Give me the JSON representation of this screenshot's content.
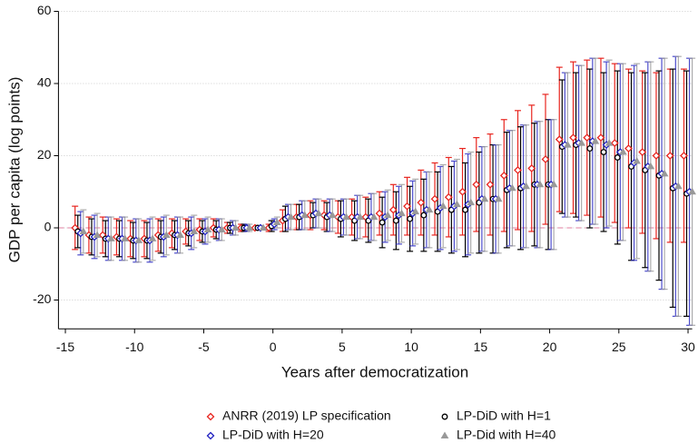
{
  "chart_data": {
    "type": "errorbar",
    "xlabel": "Years after democratization",
    "ylabel": "GDP per capita (log points)",
    "x": [
      -14,
      -13,
      -12,
      -11,
      -10,
      -9,
      -8,
      -7,
      -6,
      -5,
      -4,
      -3,
      -2,
      -1,
      0,
      1,
      2,
      3,
      4,
      5,
      6,
      7,
      8,
      9,
      10,
      11,
      12,
      13,
      14,
      15,
      16,
      17,
      18,
      19,
      20,
      21,
      22,
      23,
      24,
      25,
      26,
      27,
      28,
      29,
      30
    ],
    "xlim": [
      -15.5,
      30.3
    ],
    "xticks": [
      -15,
      -10,
      -5,
      0,
      5,
      10,
      15,
      20,
      25,
      30
    ],
    "ylim": [
      -28,
      60
    ],
    "yticks": [
      -20,
      0,
      20,
      40,
      60
    ],
    "grid": true,
    "hline": 0,
    "series": [
      {
        "name": "ANRR (2019) LP specification",
        "color": "#e8251f",
        "marker": "diamond",
        "values": [
          0,
          -2,
          -2,
          -2.5,
          -3,
          -3,
          -2,
          -1.5,
          -1,
          -0.5,
          0,
          0,
          0,
          0,
          0,
          2,
          3,
          3.5,
          3.5,
          3,
          3,
          3,
          4,
          5,
          6,
          7,
          8,
          8.5,
          10,
          12,
          12,
          14.5,
          16,
          16.5,
          19,
          24.5,
          25,
          25,
          25,
          23.5,
          22,
          21,
          20,
          20,
          20
        ],
        "errors": [
          6,
          5,
          5,
          5,
          5,
          5,
          4.5,
          4,
          3.5,
          3,
          2.5,
          1.5,
          1,
          0,
          1,
          3,
          3.5,
          4,
          4,
          4.5,
          5,
          5.5,
          6,
          7,
          8,
          9,
          10,
          11,
          12,
          13,
          14,
          15.5,
          16.5,
          17.5,
          18,
          20,
          21,
          21.5,
          22,
          22,
          22,
          22.5,
          23,
          24,
          24
        ]
      },
      {
        "name": "LP-DiD with H=1",
        "color": "#000000",
        "marker": "circle",
        "values": [
          -1,
          -2.5,
          -3,
          -3,
          -3.5,
          -3.5,
          -2.5,
          -2,
          -1.5,
          -1,
          -0.5,
          0,
          0,
          0,
          0.5,
          2.5,
          3,
          3.5,
          3,
          2.5,
          2,
          2,
          1.5,
          2,
          2.5,
          3.5,
          4.5,
          5,
          5,
          7,
          8,
          10.5,
          11,
          12,
          12,
          22.5,
          23,
          22,
          21,
          19.5,
          17,
          16,
          14.5,
          11,
          9.5
        ],
        "errors": [
          4.5,
          5,
          5,
          5,
          5,
          5,
          4.5,
          4,
          3.5,
          3,
          2.5,
          1.5,
          1,
          0,
          1.5,
          3.5,
          3.5,
          3.5,
          4,
          5,
          5.5,
          6,
          7,
          8,
          9,
          10,
          11,
          12,
          13,
          14,
          15,
          16,
          17,
          17,
          18,
          18.5,
          20,
          22,
          22,
          24,
          26,
          27,
          29,
          33,
          34
        ]
      },
      {
        "name": "LP-DiD with H=20",
        "color": "#2020c0",
        "marker": "diamond",
        "values": [
          -1.5,
          -2.5,
          -3,
          -3,
          -3.5,
          -3.5,
          -2.5,
          -2,
          -1.5,
          -1,
          -0.5,
          0,
          0,
          0,
          1,
          3,
          3.5,
          4,
          3.5,
          3,
          3,
          3,
          3,
          3.5,
          4,
          5,
          5.5,
          6,
          6.5,
          8,
          8,
          11,
          11.5,
          12,
          12,
          23,
          23.5,
          24,
          23,
          21,
          18,
          17,
          15,
          11.5,
          10
        ],
        "errors": [
          6,
          6,
          6,
          6,
          6,
          6,
          5.5,
          5,
          4.5,
          3.5,
          3,
          2,
          1,
          0,
          1.5,
          3.5,
          4,
          4,
          4.5,
          5,
          6,
          6.5,
          7,
          8,
          9,
          10.5,
          11.5,
          12.5,
          14,
          14.5,
          15,
          16,
          17,
          17.5,
          18,
          20,
          21.5,
          23,
          23,
          24.5,
          27,
          29,
          32,
          36,
          37
        ]
      },
      {
        "name": "LP-Did with H=40",
        "color": "#999999",
        "marker": "triangle",
        "values": [
          -1,
          -2,
          -3,
          -3,
          -3.5,
          -3,
          -2,
          -2,
          -1,
          -0.5,
          -0.5,
          0,
          0,
          0,
          1.5,
          3,
          3.5,
          4,
          3.5,
          3,
          3,
          3,
          3.5,
          4,
          4.5,
          5,
          6,
          6.5,
          7,
          8,
          8,
          11,
          11.5,
          12,
          12,
          23,
          23.5,
          24,
          23.5,
          21,
          18.5,
          17,
          15,
          11.5,
          10
        ],
        "errors": [
          6,
          6,
          6,
          6,
          6,
          6,
          5.5,
          5,
          4.5,
          3.5,
          3,
          2,
          1,
          0,
          1.5,
          3.5,
          4,
          4,
          4.5,
          5,
          6,
          6.5,
          7,
          8,
          9,
          10.5,
          11.5,
          12.5,
          14,
          14.5,
          15,
          16,
          17,
          17.5,
          18,
          20,
          21.5,
          23,
          23,
          24.5,
          27,
          29,
          32,
          36,
          37
        ]
      }
    ]
  }
}
